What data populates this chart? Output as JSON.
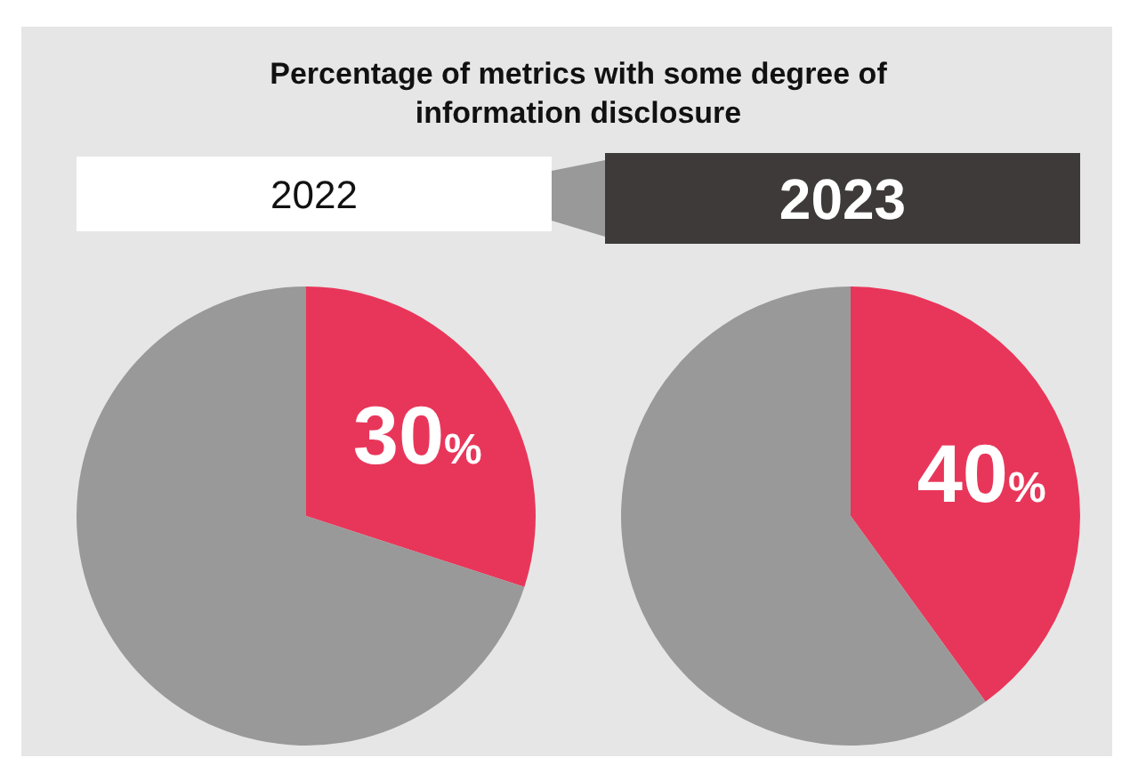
{
  "chart_data": [
    {
      "type": "pie",
      "title": "Percentage of metrics with some degree of information disclosure",
      "subtitle": "2022",
      "categories": [
        null,
        null
      ],
      "values": [
        30,
        70
      ],
      "colors": [
        "#e8365a",
        "#999999"
      ],
      "value_labels": [
        "30%",
        null
      ]
    },
    {
      "type": "pie",
      "subtitle": "2023",
      "categories": [
        null,
        null
      ],
      "values": [
        40,
        60
      ],
      "colors": [
        "#e8365a",
        "#999999"
      ],
      "value_labels": [
        "40%",
        null
      ]
    }
  ]
}
